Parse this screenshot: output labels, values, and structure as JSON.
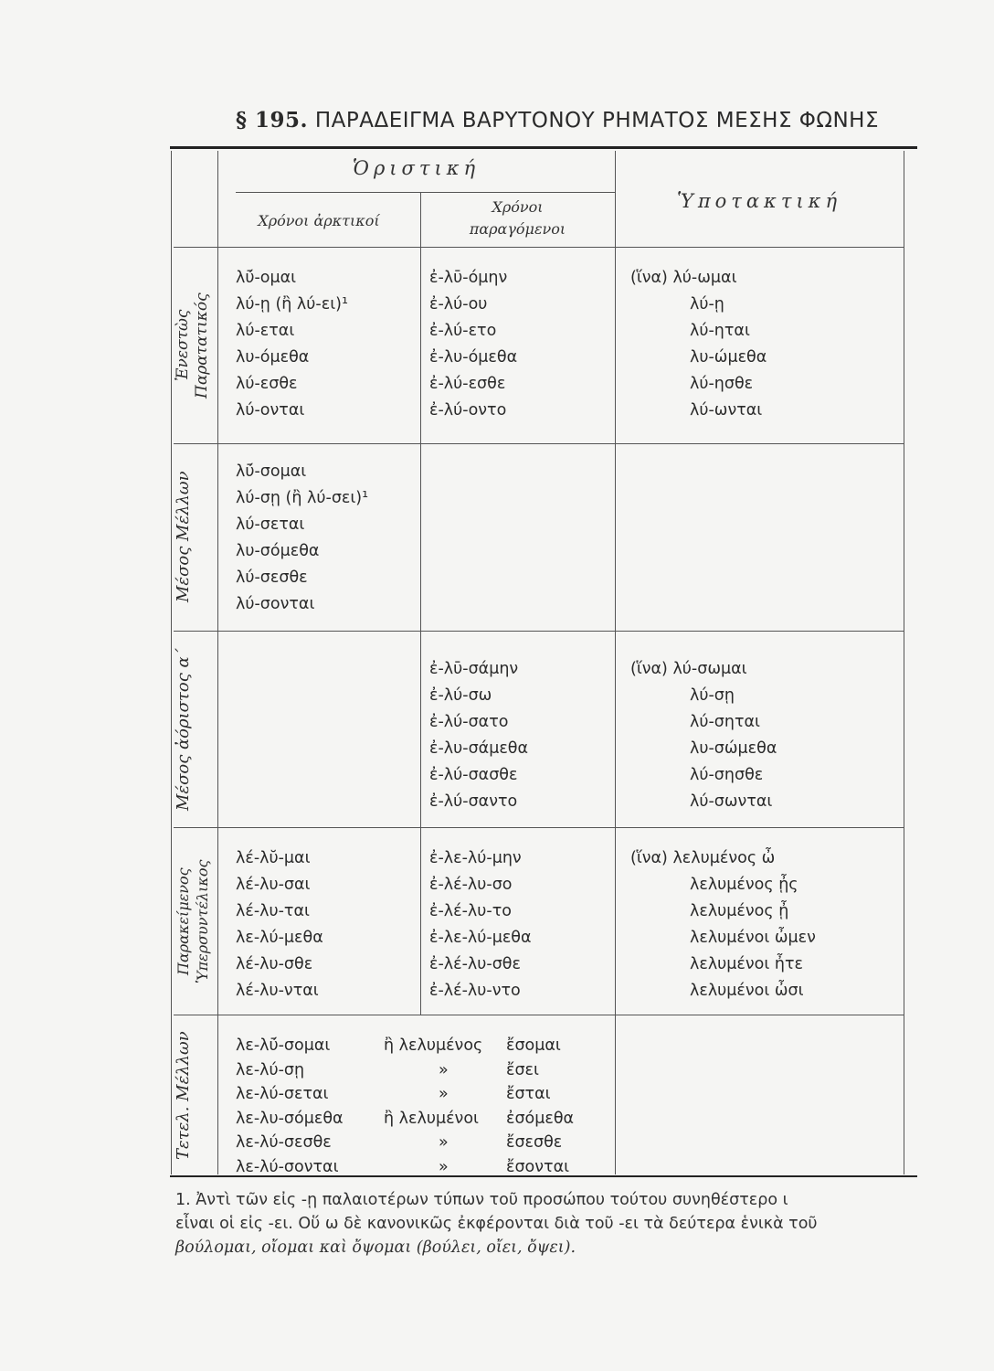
{
  "title": {
    "section": "§ 195.",
    "text": "ΠΑΡΑΔΕΙΓΜΑ ΒΑΡΥΤΟΝΟΥ ΡΗΜΑΤΟΣ ΜΕΣΗΣ ΦΩΝΗΣ"
  },
  "headers": {
    "indicative": "Ὁριστική",
    "primary": "Χρόνοι ἀρκτικοί",
    "secondary_1": "Χρόνοι",
    "secondary_2": "παραγόμενοι",
    "subjunctive": "Ὑποτακτική"
  },
  "rows": [
    {
      "label": [
        "Ἐνεστὼς",
        "Παρατατικός"
      ],
      "primary": [
        "λῡ́-ομαι",
        "λύ-ῃ (ἢ λύ-ει)¹",
        "λύ-εται",
        "λυ-όμεθα",
        "λύ-εσθε",
        "λύ-ονται"
      ],
      "secondary": [
        "ἐ-λῡ-όμην",
        "ἐ-λύ-ου",
        "ἐ-λύ-ετο",
        "ἐ-λυ-όμεθα",
        "ἐ-λύ-εσθε",
        "ἐ-λύ-οντο"
      ],
      "subjunctive": [
        "(ἵνα) λύ-ωμαι",
        "λύ-ῃ",
        "λύ-ηται",
        "λυ-ώμεθα",
        "λύ-ησθε",
        "λύ-ωνται"
      ]
    },
    {
      "label": [
        "Μέσος Μέλλων"
      ],
      "primary": [
        "λῡ́-σομαι",
        "λύ-σῃ (ἢ λύ-σει)¹",
        "λύ-σεται",
        "λυ-σόμεθα",
        "λύ-σεσθε",
        "λύ-σονται"
      ],
      "secondary": [],
      "subjunctive": []
    },
    {
      "label": [
        "Μέσος ἀόριστος α΄"
      ],
      "primary": [],
      "secondary": [
        "ἐ-λῡ-σάμην",
        "ἐ-λύ-σω",
        "ἐ-λύ-σατο",
        "ἐ-λυ-σάμεθα",
        "ἐ-λύ-σασθε",
        "ἐ-λύ-σαντο"
      ],
      "subjunctive": [
        "(ἵνα) λύ-σωμαι",
        "λύ-σῃ",
        "λύ-σηται",
        "λυ-σώμεθα",
        "λύ-σησθε",
        "λύ-σωνται"
      ]
    },
    {
      "label": [
        "Παρακείμενος",
        "Ὑπερσυντέλικος"
      ],
      "primary": [
        "λέ-λῠ-μαι",
        "λέ-λυ-σαι",
        "λέ-λυ-ται",
        "λε-λύ-μεθα",
        "λέ-λυ-σθε",
        "λέ-λυ-νται"
      ],
      "secondary": [
        "ἐ-λε-λύ-μην",
        "ἐ-λέ-λυ-σο",
        "ἐ-λέ-λυ-το",
        "ἐ-λε-λύ-μεθα",
        "ἐ-λέ-λυ-σθε",
        "ἐ-λέ-λυ-ντο"
      ],
      "subjunctive": [
        "(ἵνα) λελυμένος ὦ",
        "λελυμένος ᾖς",
        "λελυμένος ᾖ",
        "λελυμένοι ὦμεν",
        "λελυμένοι ἦτε",
        "λελυμένοι ὦσι"
      ]
    }
  ],
  "future_perfect": {
    "label": "Τετελ. Μέλλων",
    "lines": [
      [
        "λε-λῡ́-σομαι",
        "ἢ λελυμένος",
        "ἔσομαι"
      ],
      [
        "λε-λύ-σῃ",
        "»",
        "ἔσει"
      ],
      [
        "λε-λύ-σεται",
        "»",
        "ἔσται"
      ],
      [
        "λε-λυ-σόμεθα",
        "ἢ λελυμένοι",
        "ἐσόμεθα"
      ],
      [
        "λε-λύ-σεσθε",
        "»",
        "ἔσεσθε"
      ],
      [
        "λε-λύ-σονται",
        "»",
        "ἔσονται"
      ]
    ]
  },
  "footnote": {
    "line1": "1. Ἀντὶ τῶν εἰς -ῃ παλαιοτέρων τύπων τοῦ προσώπου τούτου συνηθέστερο ι",
    "line2": "εἶναι οἱ εἰς -ει. Οὕ ω δὲ κανονικῶς ἐκφέρονται διὰ τοῦ -ει τὰ δεύτερα ἑνικὰ τοῦ",
    "line3": "βούλομαι, οἴομαι καὶ ὄψομαι (βούλει, οἴει, ὄψει)."
  }
}
